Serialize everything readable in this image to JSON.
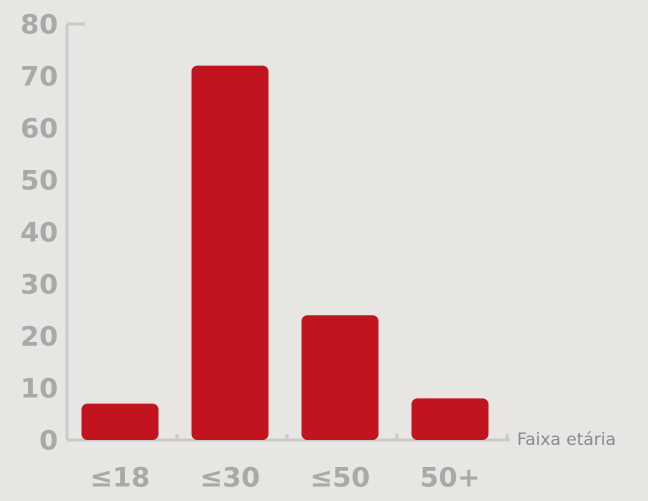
{
  "chart_data": {
    "type": "bar",
    "x_label": "Faixa etária",
    "categories": [
      "≤18",
      "≤30",
      "≤50",
      "50+"
    ],
    "values": [
      7,
      72,
      24,
      8
    ],
    "color": "#c1141e",
    "ylim": [
      0,
      80
    ],
    "yticks": [
      0,
      10,
      20,
      30,
      40,
      50,
      60,
      70,
      80
    ]
  }
}
